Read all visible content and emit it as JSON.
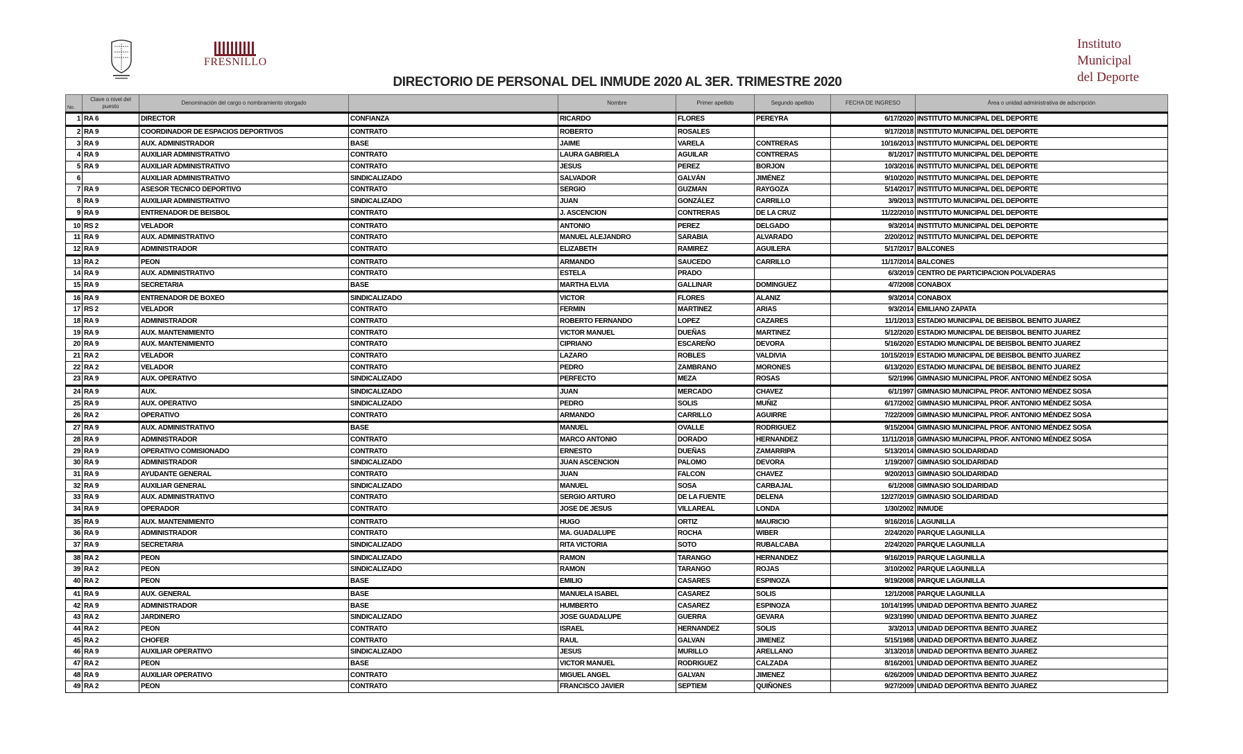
{
  "header": {
    "title": "DIRECTORIO DE PERSONAL DEL INMUDE 2020 AL 3ER. TRIMESTRE 2020",
    "logo_left": "municipal-seal",
    "logo_center": "FRESNILLO",
    "institute_lines": [
      "Instituto",
      "Municipal",
      "del Deporte"
    ],
    "brand_color": "#7a1f2b"
  },
  "table": {
    "columns": [
      "No.",
      "Clave o nivel del puesto",
      "Denominación del cargo o nombramiento otorgado",
      "",
      "Nombre",
      "Primer apellido",
      "Segundo apellido",
      "FECHA DE INGRESO",
      "Área o unidad administrativa de adscripción"
    ],
    "rows": [
      [
        "1",
        "RA 6",
        "DIRECTOR",
        "CONFIANZA",
        "RICARDO",
        "FLORES",
        "PEREYRA",
        "6/17/2020",
        "INSTITUTO MUNICIPAL DEL DEPORTE"
      ],
      [
        "2",
        "RA 9",
        "COORDINADOR DE ESPACIOS DEPORTIVOS",
        "CONTRATO",
        "ROBERTO",
        "ROSALES",
        "",
        "9/17/2018",
        "INSTITUTO MUNICIPAL DEL DEPORTE"
      ],
      [
        "3",
        "RA 9",
        "AUX. ADMINISTRADOR",
        "BASE",
        "JAIME",
        "VARELA",
        "CONTRERAS",
        "10/16/2013",
        "INSTITUTO MUNICIPAL DEL DEPORTE"
      ],
      [
        "4",
        "RA 9",
        "AUXILIAR ADMINISTRATIVO",
        "CONTRATO",
        "LAURA GABRIELA",
        "AGUILAR",
        "CONTRERAS",
        "8/1/2017",
        "INSTITUTO MUNICIPAL DEL DEPORTE"
      ],
      [
        "5",
        "RA 9",
        "AUXILIAR ADMINISTRATIVO",
        "CONTRATO",
        "JESUS",
        "PEREZ",
        "BORJON",
        "10/3/2016",
        "INSTITUTO MUNICIPAL DEL DEPORTE"
      ],
      [
        "6",
        "",
        "AUXILIAR ADMINISTRATIVO",
        "SINDICALIZADO",
        "SALVADOR",
        "GALVÁN",
        "JIMÉNEZ",
        "9/10/2020",
        "INSTITUTO MUNICIPAL DEL DEPORTE"
      ],
      [
        "7",
        "RA 9",
        "ASESOR TECNICO DEPORTIVO",
        "CONTRATO",
        "SERGIO",
        "GUZMAN",
        "RAYGOZA",
        "5/14/2017",
        "INSTITUTO MUNICIPAL DEL DEPORTE"
      ],
      [
        "8",
        "RA 9",
        "AUXILIAR ADMINISTRATIVO",
        "SINDICALIZADO",
        "JUAN",
        "GONZÁLEZ",
        "CARRILLO",
        "3/9/2013",
        "INSTITUTO MUNICIPAL DEL DEPORTE"
      ],
      [
        "9",
        "RA 9",
        "ENTRENADOR DE BEISBOL",
        "CONTRATO",
        "J. ASCENCION",
        "CONTRERAS",
        "DE LA CRUZ",
        "11/22/2010",
        "INSTITUTO MUNICIPAL DEL DEPORTE"
      ],
      [
        "10",
        "RS 2",
        "VELADOR",
        "CONTRATO",
        "ANTONIO",
        "PEREZ",
        "DELGADO",
        "9/3/2014",
        "INSTITUTO MUNICIPAL DEL DEPORTE"
      ],
      [
        "11",
        "RA 9",
        "AUX. ADMINISTRATIVO",
        "CONTRATO",
        "MANUEL ALEJANDRO",
        "SARABIA",
        "ALVARADO",
        "2/20/2012",
        "INSTITUTO MUNICIPAL DEL DEPORTE"
      ],
      [
        "12",
        "RA 9",
        "ADMINISTRADOR",
        "CONTRATO",
        "ELIZABETH",
        "RAMIREZ",
        "AGUILERA",
        "5/17/2017",
        "BALCONES"
      ],
      [
        "13",
        "RA 2",
        "PEON",
        "CONTRATO",
        "ARMANDO",
        "SAUCEDO",
        "CARRILLO",
        "11/17/2014",
        "BALCONES"
      ],
      [
        "14",
        "RA 9",
        "AUX. ADMINISTRATIVO",
        "CONTRATO",
        "ESTELA",
        "PRADO",
        "",
        "6/3/2019",
        "CENTRO DE PARTICIPACION POLVADERAS"
      ],
      [
        "15",
        "RA 9",
        "SECRETARIA",
        "BASE",
        "MARTHA ELVIA",
        "GALLINAR",
        "DOMINGUEZ",
        "4/7/2008",
        "CONABOX"
      ],
      [
        "16",
        "RA 9",
        "ENTRENADOR DE BOXEO",
        "SINDICALIZADO",
        "VICTOR",
        "FLORES",
        "ALANIZ",
        "9/3/2014",
        "CONABOX"
      ],
      [
        "17",
        "RS 2",
        "VELADOR",
        "CONTRATO",
        "FERMIN",
        "MARTINEZ",
        "ARIAS",
        "9/3/2014",
        "EMILIANO ZAPATA"
      ],
      [
        "18",
        "RA 9",
        "ADMINISTRADOR",
        "CONTRATO",
        "ROBERTO FERNANDO",
        "LOPEZ",
        "CAZARES",
        "11/1/2013",
        "ESTADIO MUNICIPAL DE BEISBOL BENITO JUAREZ"
      ],
      [
        "19",
        "RA 9",
        "AUX. MANTENIMIENTO",
        "CONTRATO",
        "VICTOR MANUEL",
        "DUEÑAS",
        "MARTINEZ",
        "5/12/2020",
        "ESTADIO MUNICIPAL DE BEISBOL BENITO JUAREZ"
      ],
      [
        "20",
        "RA 9",
        "AUX. MANTENIMIENTO",
        "CONTRATO",
        "CIPRIANO",
        "ESCAREÑO",
        "DEVORA",
        "5/16/2020",
        "ESTADIO MUNICIPAL DE BEISBOL BENITO JUAREZ"
      ],
      [
        "21",
        "RA 2",
        "VELADOR",
        "CONTRATO",
        "LAZARO",
        "ROBLES",
        "VALDIVIA",
        "10/15/2019",
        "ESTADIO MUNICIPAL DE BEISBOL BENITO JUAREZ"
      ],
      [
        "22",
        "RA 2",
        "VELADOR",
        "CONTRATO",
        "PEDRO",
        "ZAMBRANO",
        "MORONES",
        "6/13/2020",
        "ESTADIO MUNICIPAL DE BEISBOL BENITO JUAREZ"
      ],
      [
        "23",
        "RA 9",
        "AUX. OPERATIVO",
        "SINDICALIZADO",
        "PERFECTO",
        "MEZA",
        "ROSAS",
        "5/2/1996",
        "GIMNASIO MUNICIPAL PROF. ANTONIO MÉNDEZ SOSA"
      ],
      [
        "24",
        "RA 9",
        "AUX.",
        "SINDICALIZADO",
        "JUAN",
        "MERCADO",
        "CHAVEZ",
        "6/1/1997",
        "GIMNASIO MUNICIPAL PROF. ANTONIO MÉNDEZ SOSA"
      ],
      [
        "25",
        "RA 9",
        "AUX. OPERATIVO",
        "SINDICALIZADO",
        "PEDRO",
        "SOLIS",
        "MUÑIZ",
        "6/17/2002",
        "GIMNASIO MUNICIPAL PROF. ANTONIO MÉNDEZ SOSA"
      ],
      [
        "26",
        "RA 2",
        "OPERATIVO",
        "CONTRATO",
        "ARMANDO",
        "CARRILLO",
        "AGUIRRE",
        "7/22/2009",
        "GIMNASIO MUNICIPAL PROF. ANTONIO MÉNDEZ SOSA"
      ],
      [
        "27",
        "RA 9",
        "AUX. ADMINISTRATIVO",
        "BASE",
        "MANUEL",
        "OVALLE",
        "RODRIGUEZ",
        "9/15/2004",
        "GIMNASIO MUNICIPAL PROF. ANTONIO MÉNDEZ SOSA"
      ],
      [
        "28",
        "RA 9",
        "ADMINISTRADOR",
        "CONTRATO",
        "MARCO ANTONIO",
        "DORADO",
        "HERNANDEZ",
        "11/11/2018",
        "GIMNASIO MUNICIPAL PROF. ANTONIO MÉNDEZ SOSA"
      ],
      [
        "29",
        "RA 9",
        "OPERATIVO COMISIONADO",
        "CONTRATO",
        "ERNESTO",
        "DUEÑAS",
        "ZAMARRIPA",
        "5/13/2014",
        "GIMNASIO SOLIDARIDAD"
      ],
      [
        "30",
        "RA 9",
        "ADMINISTRADOR",
        "SINDICALIZADO",
        "JUAN ASCENCION",
        "PALOMO",
        "DEVORA",
        "1/19/2007",
        "GIMNASIO SOLIDARIDAD"
      ],
      [
        "31",
        "RA 9",
        "AYUDANTE GENERAL",
        "CONTRATO",
        "JUAN",
        "FALCON",
        "CHAVEZ",
        "9/20/2013",
        "GIMNASIO SOLIDARIDAD"
      ],
      [
        "32",
        "RA 9",
        "AUXILIAR GENERAL",
        "SINDICALIZADO",
        "MANUEL",
        "SOSA",
        "CARBAJAL",
        "6/1/2008",
        "GIMNASIO SOLIDARIDAD"
      ],
      [
        "33",
        "RA 9",
        "AUX. ADMINISTRATIVO",
        "CONTRATO",
        "SERGIO ARTURO",
        "DE LA FUENTE",
        "DELENA",
        "12/27/2019",
        "GIMNASIO SOLIDARIDAD"
      ],
      [
        "34",
        "RA 9",
        "OPERADOR",
        "CONTRATO",
        "JOSE DE JESUS",
        "VILLAREAL",
        "LONDA",
        "1/30/2002",
        "INMUDE"
      ],
      [
        "35",
        "RA 9",
        "AUX. MANTENIMIENTO",
        "CONTRATO",
        "HUGO",
        "ORTIZ",
        "MAURICIO",
        "9/16/2016",
        "LAGUNILLA"
      ],
      [
        "36",
        "RA 9",
        "ADMINISTRADOR",
        "CONTRATO",
        "MA. GUADALUPE",
        "ROCHA",
        "WIBER",
        "2/24/2020",
        "PARQUE LAGUNILLA"
      ],
      [
        "37",
        "RA 9",
        "SECRETARIA",
        "SINDICALIZADO",
        "RITA VICTORIA",
        "SOTO",
        "RUBALCABA",
        "2/24/2020",
        "PARQUE LAGUNILLA"
      ],
      [
        "38",
        "RA 2",
        "PEON",
        "SINDICALIZADO",
        "RAMON",
        "TARANGO",
        "HERNANDEZ",
        "9/16/2019",
        "PARQUE LAGUNILLA"
      ],
      [
        "39",
        "RA 2",
        "PEON",
        "SINDICALIZADO",
        "RAMON",
        "TARANGO",
        "ROJAS",
        "3/10/2002",
        "PARQUE LAGUNILLA"
      ],
      [
        "40",
        "RA 2",
        "PEON",
        "BASE",
        "EMILIO",
        "CASARES",
        "ESPINOZA",
        "9/19/2008",
        "PARQUE LAGUNILLA"
      ],
      [
        "41",
        "RA 9",
        "AUX. GENERAL",
        "BASE",
        "MANUELA ISABEL",
        "CASAREZ",
        "SOLIS",
        "12/1/2008",
        "PARQUE LAGUNILLA"
      ],
      [
        "42",
        "RA 9",
        "ADMINISTRADOR",
        "BASE",
        "HUMBERTO",
        "CASAREZ",
        "ESPINOZA",
        "10/14/1995",
        "UNIDAD DEPORTIVA BENITO JUAREZ"
      ],
      [
        "43",
        "RA 2",
        "JARDINERO",
        "SINDICALIZADO",
        "JOSE GUADALUPE",
        "GUERRA",
        "GEVARA",
        "9/23/1990",
        "UNIDAD DEPORTIVA BENITO JUAREZ"
      ],
      [
        "44",
        "RA 2",
        "PEON",
        "CONTRATO",
        "ISRAEL",
        "HERNANDEZ",
        "SOLIS",
        "3/3/2013",
        "UNIDAD DEPORTIVA BENITO JUAREZ"
      ],
      [
        "45",
        "RA 2",
        "CHOFER",
        "CONTRATO",
        "RAUL",
        "GALVAN",
        "JIMENEZ",
        "5/15/1988",
        "UNIDAD DEPORTIVA BENITO JUAREZ"
      ],
      [
        "46",
        "RA 9",
        "AUXILIAR OPERATIVO",
        "SINDICALIZADO",
        "JESUS",
        "MURILLO",
        "ARELLANO",
        "3/13/2018",
        "UNIDAD DEPORTIVA BENITO JUAREZ"
      ],
      [
        "47",
        "RA 2",
        "PEON",
        "BASE",
        "VICTOR MANUEL",
        "RODRIGUEZ",
        "CALZADA",
        "8/16/2001",
        "UNIDAD DEPORTIVA BENITO JUAREZ"
      ],
      [
        "48",
        "RA 9",
        "AUXILIAR OPERATIVO",
        "CONTRATO",
        "MIGUEL ANGEL",
        "GALVAN",
        "JIMENEZ",
        "6/26/2009",
        "UNIDAD DEPORTIVA BENITO JUAREZ"
      ],
      [
        "49",
        "RA 2",
        "PEON",
        "CONTRATO",
        "FRANCISCO JAVIER",
        "SEPTIEM",
        "QUIÑONES",
        "9/27/2009",
        "UNIDAD DEPORTIVA BENITO JUAREZ"
      ]
    ]
  }
}
